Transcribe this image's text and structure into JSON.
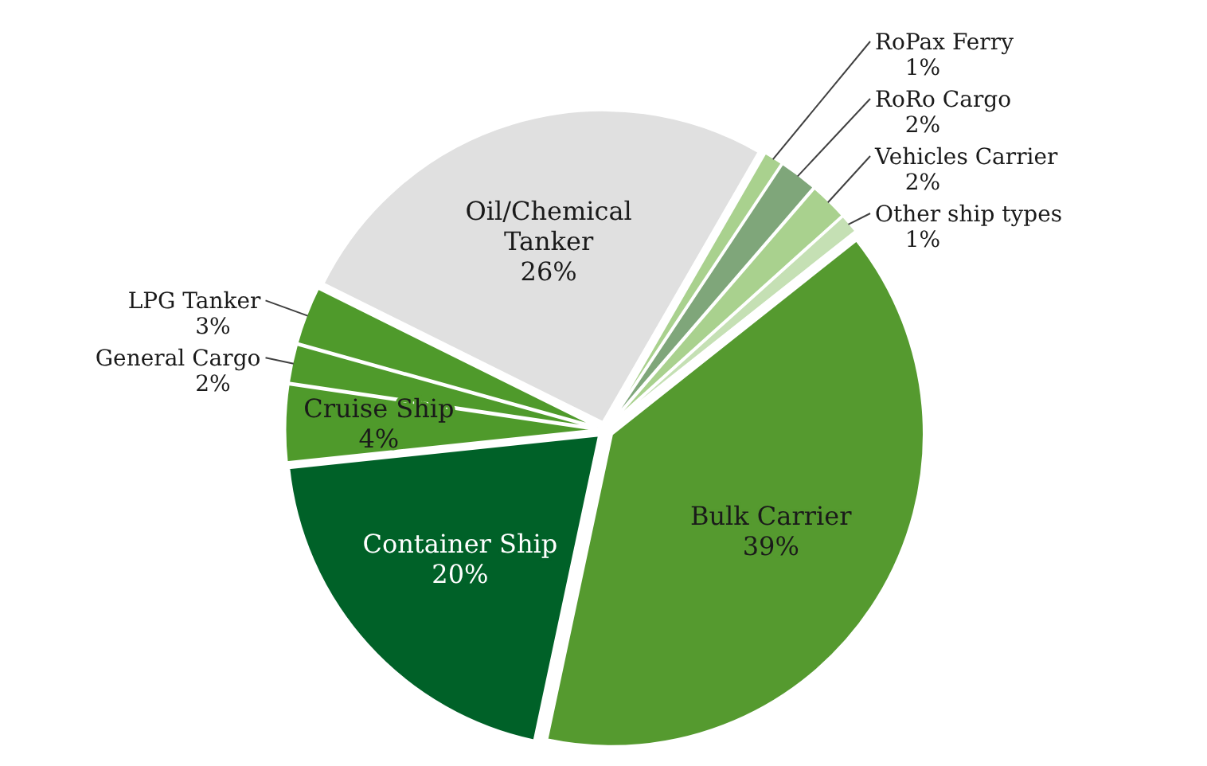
{
  "chart_data": {
    "type": "pie",
    "categories": [
      "RoPax Ferry",
      "RoRo Cargo",
      "Vehicles Carrier",
      "Other ship types",
      "Bulk Carrier",
      "Container Ship",
      "Cruise Ship",
      "General Cargo",
      "LPG Tanker",
      "Oil/Chemical Tanker"
    ],
    "values": [
      1,
      2,
      2,
      1,
      39,
      20,
      4,
      2,
      3,
      26
    ],
    "value_labels": [
      "1%",
      "2%",
      "2%",
      "1%",
      "39%",
      "20%",
      "4%",
      "2%",
      "3%",
      "26%"
    ],
    "colors": [
      "#a9d18e",
      "#7fa67a",
      "#a9d18e",
      "#c5e0b4",
      "#559a2f",
      "#006128",
      "#4f9a2b",
      "#4f9a2b",
      "#4f9a2b",
      "#e0e0e0"
    ]
  }
}
